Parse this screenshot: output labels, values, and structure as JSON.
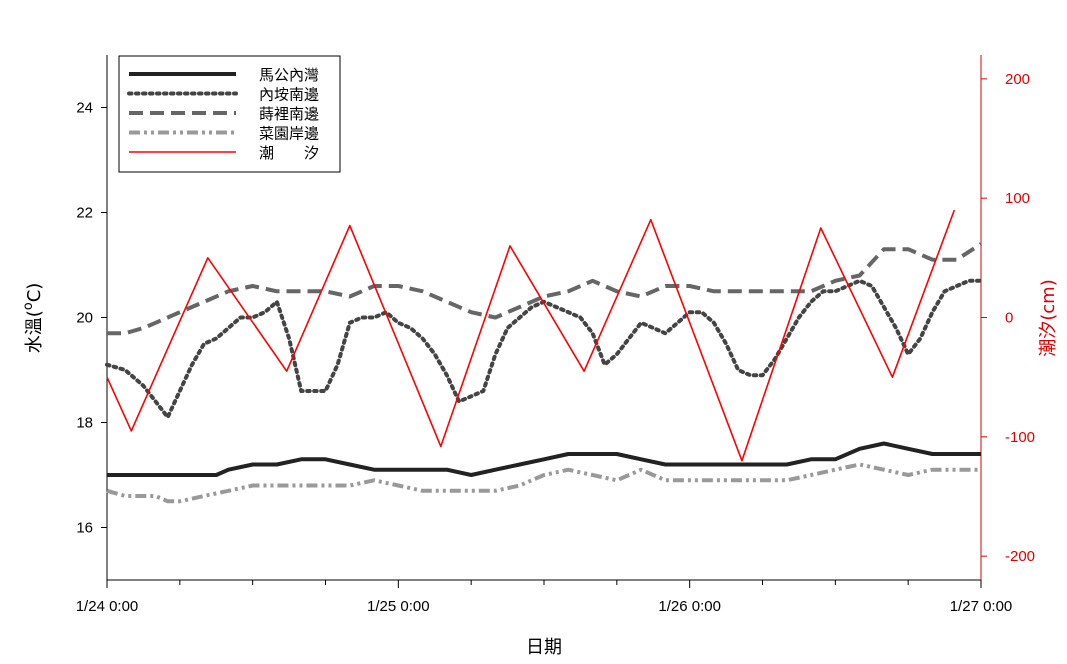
{
  "chart_data": {
    "type": "line",
    "x_tick_labels": [
      "1/24 0:00",
      "1/25 0:00",
      "1/26 0:00",
      "1/27 0:00"
    ],
    "x_range_hours": [
      0,
      72
    ],
    "x_minor_tick_step_hours": 6,
    "xlabel": "日期",
    "ylabel_left": {
      "text": "水溫",
      "unit_prefix": "(",
      "unit_sup": "o",
      "unit_suffix": "C)"
    },
    "ylabel_right": "潮汐(cm)",
    "ylim_left": [
      15,
      25
    ],
    "yticks_left": [
      16,
      18,
      20,
      22,
      24
    ],
    "ylim_right": [
      -220,
      220
    ],
    "yticks_right": [
      -200,
      -100,
      0,
      100,
      200
    ],
    "grid": false,
    "legend_position": "top-left",
    "right_axis_color": "#e00000",
    "series": [
      {
        "name": "馬公內灣",
        "axis": "left",
        "color": "#222222",
        "dash": "solid",
        "x": [
          0,
          3,
          6,
          9,
          10,
          12,
          14,
          16,
          18,
          20,
          22,
          24,
          26,
          28,
          30,
          32,
          34,
          36,
          38,
          40,
          42,
          44,
          46,
          48,
          50,
          52,
          54,
          56,
          58,
          60,
          62,
          64,
          66,
          68,
          70,
          72
        ],
        "values": [
          17.0,
          17.0,
          17.0,
          17.0,
          17.1,
          17.2,
          17.2,
          17.3,
          17.3,
          17.2,
          17.1,
          17.1,
          17.1,
          17.1,
          17.0,
          17.1,
          17.2,
          17.3,
          17.4,
          17.4,
          17.4,
          17.3,
          17.2,
          17.2,
          17.2,
          17.2,
          17.2,
          17.2,
          17.3,
          17.3,
          17.5,
          17.6,
          17.5,
          17.4,
          17.4,
          17.4
        ]
      },
      {
        "name": "內垵南邊",
        "axis": "left",
        "color": "#444444",
        "dash": "dotted",
        "x": [
          0,
          1.5,
          3,
          4,
          5,
          6,
          7,
          8,
          9,
          10,
          11,
          12,
          13,
          14,
          15,
          16,
          17,
          18,
          19,
          20,
          21,
          22,
          23,
          24,
          25,
          26,
          27,
          28,
          29,
          30,
          31,
          32,
          33,
          34,
          35,
          36,
          37,
          38,
          39,
          40,
          41,
          42,
          43,
          44,
          45,
          46,
          47,
          48,
          49,
          50,
          51,
          52,
          53,
          54,
          55,
          56,
          57,
          58,
          59,
          60,
          61,
          62,
          63,
          64,
          65,
          66,
          67,
          68,
          69,
          70,
          71,
          72
        ],
        "values": [
          19.1,
          19.0,
          18.7,
          18.4,
          18.1,
          18.6,
          19.1,
          19.5,
          19.6,
          19.8,
          20.0,
          20.0,
          20.1,
          20.3,
          19.6,
          18.6,
          18.6,
          18.6,
          19.1,
          19.9,
          20.0,
          20.0,
          20.1,
          19.9,
          19.8,
          19.6,
          19.3,
          18.9,
          18.4,
          18.5,
          18.6,
          19.3,
          19.8,
          20.0,
          20.2,
          20.3,
          20.2,
          20.1,
          20.0,
          19.7,
          19.1,
          19.3,
          19.6,
          19.9,
          19.8,
          19.7,
          19.9,
          20.1,
          20.1,
          19.9,
          19.5,
          19.0,
          18.9,
          18.9,
          19.2,
          19.6,
          20.0,
          20.3,
          20.5,
          20.5,
          20.6,
          20.7,
          20.6,
          20.2,
          19.8,
          19.3,
          19.6,
          20.1,
          20.5,
          20.6,
          20.7,
          20.7
        ]
      },
      {
        "name": "蒔裡南邊",
        "axis": "left",
        "color": "#666666",
        "dash": "dashed",
        "x": [
          0,
          1.5,
          3,
          4,
          5,
          6,
          8,
          10,
          12,
          14,
          16,
          18,
          20,
          22,
          24,
          26,
          28,
          30,
          32,
          34,
          36,
          38,
          40,
          42,
          44,
          46,
          48,
          50,
          52,
          54,
          56,
          58,
          60,
          62,
          64,
          66,
          68,
          70,
          72
        ],
        "values": [
          19.7,
          19.7,
          19.8,
          19.9,
          20.0,
          20.1,
          20.3,
          20.5,
          20.6,
          20.5,
          20.5,
          20.5,
          20.4,
          20.6,
          20.6,
          20.5,
          20.3,
          20.1,
          20.0,
          20.2,
          20.4,
          20.5,
          20.7,
          20.5,
          20.4,
          20.6,
          20.6,
          20.5,
          20.5,
          20.5,
          20.5,
          20.5,
          20.7,
          20.8,
          21.3,
          21.3,
          21.1,
          21.1,
          21.4
        ]
      },
      {
        "name": "菜園岸邊",
        "axis": "left",
        "color": "#999999",
        "dash": "dashdotdot",
        "x": [
          0,
          1.5,
          3,
          4,
          5,
          6,
          8,
          10,
          12,
          14,
          16,
          18,
          20,
          22,
          24,
          26,
          28,
          30,
          32,
          34,
          36,
          38,
          40,
          42,
          44,
          46,
          48,
          50,
          52,
          54,
          56,
          58,
          60,
          62,
          64,
          66,
          68,
          70,
          72
        ],
        "values": [
          16.7,
          16.6,
          16.6,
          16.6,
          16.5,
          16.5,
          16.6,
          16.7,
          16.8,
          16.8,
          16.8,
          16.8,
          16.8,
          16.9,
          16.8,
          16.7,
          16.7,
          16.7,
          16.7,
          16.8,
          17.0,
          17.1,
          17.0,
          16.9,
          17.1,
          16.9,
          16.9,
          16.9,
          16.9,
          16.9,
          16.9,
          17.0,
          17.1,
          17.2,
          17.1,
          17.0,
          17.1,
          17.1,
          17.1
        ]
      },
      {
        "name": "潮　　汐",
        "axis": "right",
        "color": "#ff0000",
        "dash": "solid",
        "x": [
          0,
          2,
          8.3,
          14.8,
          20,
          27.5,
          33.2,
          39.3,
          44.8,
          52.3,
          58.8,
          64.7,
          69.8
        ],
        "values": [
          -50,
          -95,
          50,
          -45,
          77,
          -108,
          60,
          -45,
          82,
          -120,
          75,
          -50,
          90
        ]
      }
    ]
  }
}
